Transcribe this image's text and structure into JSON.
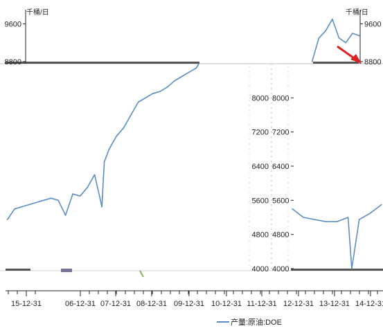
{
  "chart_data": {
    "type": "line",
    "title": "",
    "unit_label": "千桶/日",
    "legend": {
      "position": "bottom-right",
      "entries": [
        "产量:原油:DOE"
      ]
    },
    "series_color": "#5b8cc5",
    "left_axis_upper": {
      "ticks": [
        "9600",
        "8800"
      ]
    },
    "right_axis_upper": {
      "ticks": [
        "9600",
        "8800"
      ]
    },
    "main_axis": {
      "ticks": [
        "8000",
        "7200",
        "6400",
        "5600",
        "4800",
        "4000"
      ],
      "ylim": [
        4000,
        8800
      ]
    },
    "x_ticks": [
      "15-12-31",
      "06-12-31",
      "07-12-31",
      "08-12-31",
      "09-12-31",
      "10-12-31",
      "11-12-31",
      "12-12-31",
      "13-12-31",
      "14-12-31"
    ],
    "series": [
      {
        "name": "产量:原油:DOE",
        "segment": "left-panel",
        "x": [
          "2005-06",
          "2005-09",
          "2005-12",
          "2006-03",
          "2006-06",
          "2006-09",
          "2006-12",
          "2007-03",
          "2007-06",
          "2007-09",
          "2007-12",
          "2008-03",
          "2008-06",
          "2008-09",
          "2008-10",
          "2008-12",
          "2009-03",
          "2009-06",
          "2009-09",
          "2009-12",
          "2010-03",
          "2010-06",
          "2010-09",
          "2010-12",
          "2011-03",
          "2011-06",
          "2011-09",
          "2011-12",
          "2012-01"
        ],
        "values": [
          5150,
          5400,
          5450,
          5500,
          5550,
          5600,
          5650,
          5600,
          5250,
          5750,
          5700,
          5900,
          6200,
          5450,
          6500,
          6800,
          7100,
          7300,
          7600,
          7900,
          8000,
          8100,
          8150,
          8250,
          8400,
          8500,
          8600,
          8700,
          8800
        ]
      },
      {
        "name": "产量:原油:DOE",
        "segment": "right-panel",
        "x": [
          "2012-12",
          "2013-03",
          "2013-06",
          "2013-09",
          "2013-12",
          "2014-03",
          "2014-04",
          "2014-06",
          "2014-09",
          "2014-12"
        ],
        "values": [
          5400,
          5200,
          5150,
          5100,
          5100,
          5200,
          4000,
          5150,
          5300,
          5500
        ]
      },
      {
        "name": "产量:原油:DOE",
        "segment": "top-right-inset",
        "x": [
          "2014-03",
          "2014-06",
          "2014-09",
          "2014-12",
          "2015-03",
          "2015-06",
          "2015-09",
          "2015-12"
        ],
        "values": [
          8800,
          9300,
          9450,
          9700,
          9300,
          9200,
          9400,
          9350
        ]
      }
    ],
    "grid": true
  }
}
